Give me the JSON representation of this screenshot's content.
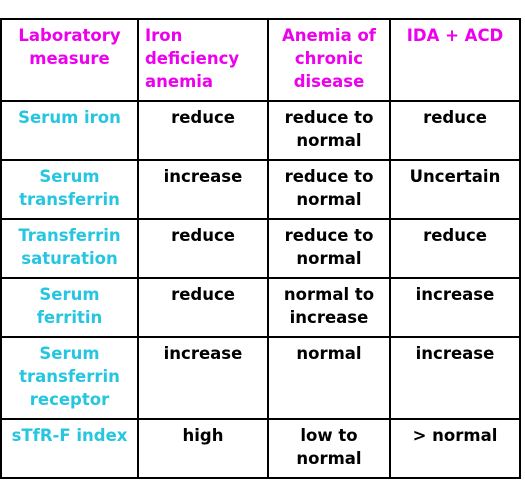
{
  "table": {
    "headers": [
      "Laboratory\nmeasure",
      "Iron\ndeficiency\nanemia",
      "Anemia of\nchronic\ndisease",
      "IDA + ACD"
    ],
    "rows": [
      {
        "label": "Serum iron",
        "values": [
          "reduce",
          "reduce to\nnormal",
          "reduce"
        ]
      },
      {
        "label": "Serum\ntransferrin",
        "values": [
          "increase",
          "reduce to\nnormal",
          "Uncertain"
        ]
      },
      {
        "label": "Transferrin\nsaturation",
        "values": [
          "reduce",
          "reduce to\nnormal",
          "reduce"
        ]
      },
      {
        "label": "Serum\nferritin",
        "values": [
          "reduce",
          "normal to\nincrease",
          "increase"
        ]
      },
      {
        "label": "Serum\ntransferrin\nreceptor",
        "values": [
          "increase",
          "normal",
          "increase"
        ]
      },
      {
        "label": "sTfR-F index",
        "values": [
          "high",
          "low to\nnormal",
          "> normal"
        ]
      }
    ]
  },
  "colors": {
    "header_text": "#ee00ee",
    "row_label_text": "#26c6e0",
    "cell_text": "#000000",
    "border": "#000000"
  }
}
